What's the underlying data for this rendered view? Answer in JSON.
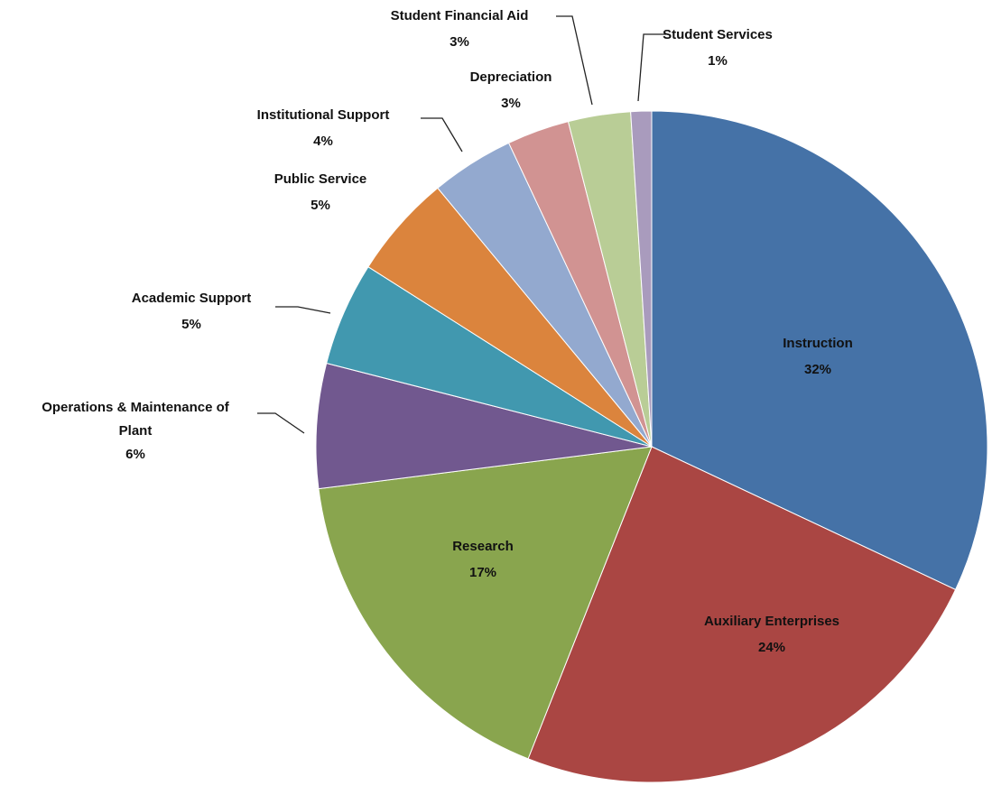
{
  "chart_data": {
    "type": "pie",
    "categories": [
      "Instruction",
      "Auxiliary Enterprises",
      "Research",
      "Operations & Maintenance of Plant",
      "Academic Support",
      "Public Service",
      "Institutional Support",
      "Depreciation",
      "Student Financial Aid",
      "Student Services"
    ],
    "values": [
      32,
      24,
      17,
      6,
      5,
      5,
      4,
      3,
      3,
      1
    ],
    "value_labels": [
      "32%",
      "24%",
      "17%",
      "6%",
      "5%",
      "5%",
      "4%",
      "3%",
      "3%",
      "1%"
    ],
    "colors": [
      "#4572a7",
      "#aa4643",
      "#89a54e",
      "#71588f",
      "#4198af",
      "#db843d",
      "#93a9cf",
      "#d19392",
      "#b9cd96",
      "#a99bbd"
    ]
  }
}
